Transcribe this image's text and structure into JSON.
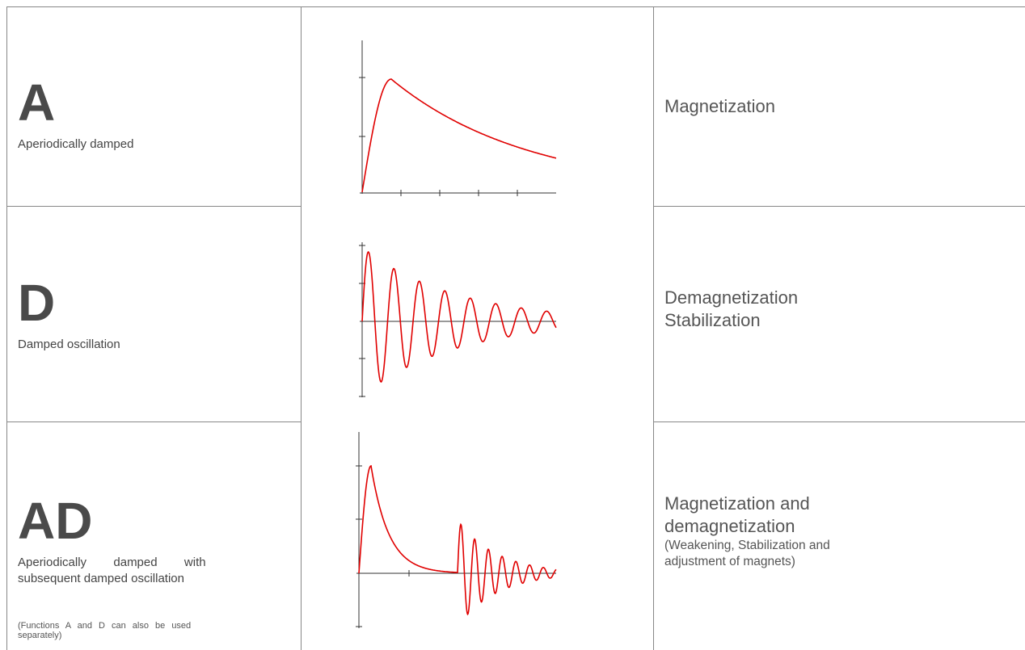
{
  "rows": [
    {
      "code": "A",
      "description": "Aperiodically damped",
      "application": [
        "Magnetization"
      ]
    },
    {
      "code": "D",
      "description": "Damped oscillation",
      "application": [
        "Demagnetization",
        "Stabilization"
      ]
    },
    {
      "code": "AD",
      "description_line1": "Aperiodically        damped        with",
      "description_line2": "subsequent damped oscillation",
      "note_line1": "(Functions A and D can also be used",
      "note_line2": "separately)",
      "application": [
        "Magnetization and",
        "demagnetization"
      ],
      "application_sub": [
        "(Weakening, Stabilization and",
        "adjustment of magnets)"
      ]
    }
  ],
  "colors": {
    "curve": "#e00000",
    "axes": "#333333",
    "grid_lines": "#888888"
  }
}
